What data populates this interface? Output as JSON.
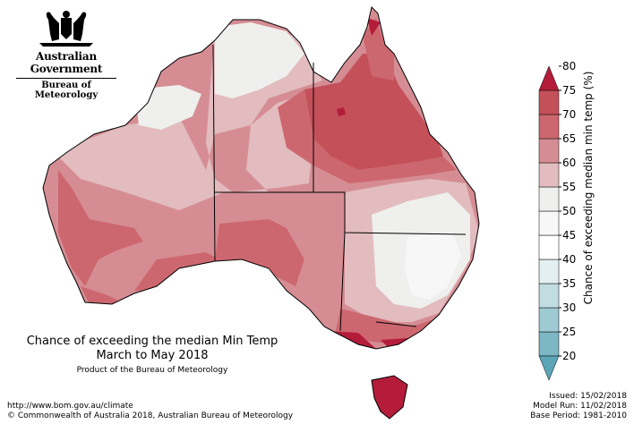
{
  "header": {
    "government": "Australian Government",
    "bureau": "Bureau of Meteorology"
  },
  "map_title": {
    "line1": "Chance of exceeding the median Min Temp",
    "line2": "March to May 2018",
    "line3": "Product of the Bureau of Meteorology"
  },
  "footer": {
    "url": "http://www.bom.gov.au/climate",
    "copyright": "© Commonwealth of Australia 2018, Australian Bureau of Meteorology",
    "issued": "Issued: 15/02/2018",
    "model_run": "Model Run: 11/02/2018",
    "base_period": "Base Period: 1981-2010"
  },
  "legend": {
    "title": "Chance of exceeding median min temp (%)",
    "ticks": [
      "80",
      "75",
      "70",
      "65",
      "60",
      "55",
      "50",
      "45",
      "40",
      "35",
      "30",
      "25",
      "20"
    ],
    "bins": [
      {
        "range": "20-25",
        "color": "#5ba5b8"
      },
      {
        "range": "25-30",
        "color": "#7db7c6"
      },
      {
        "range": "30-35",
        "color": "#9ecad3"
      },
      {
        "range": "35-40",
        "color": "#c1dde2"
      },
      {
        "range": "40-45",
        "color": "#e3eff1"
      },
      {
        "range": "45-50",
        "color": "#ffffff"
      },
      {
        "range": "50-55",
        "color": "#f7f7f7"
      },
      {
        "range": "55-60",
        "color": "#efefed"
      },
      {
        "range": "60-65",
        "color": "#e2bcbf"
      },
      {
        "range": "65-70",
        "color": "#d58d93"
      },
      {
        "range": "70-75",
        "color": "#cd676f"
      },
      {
        "range": "75-80",
        "color": "#c4505a"
      },
      {
        "range": ">80",
        "color": "#b41c3a"
      }
    ]
  }
}
